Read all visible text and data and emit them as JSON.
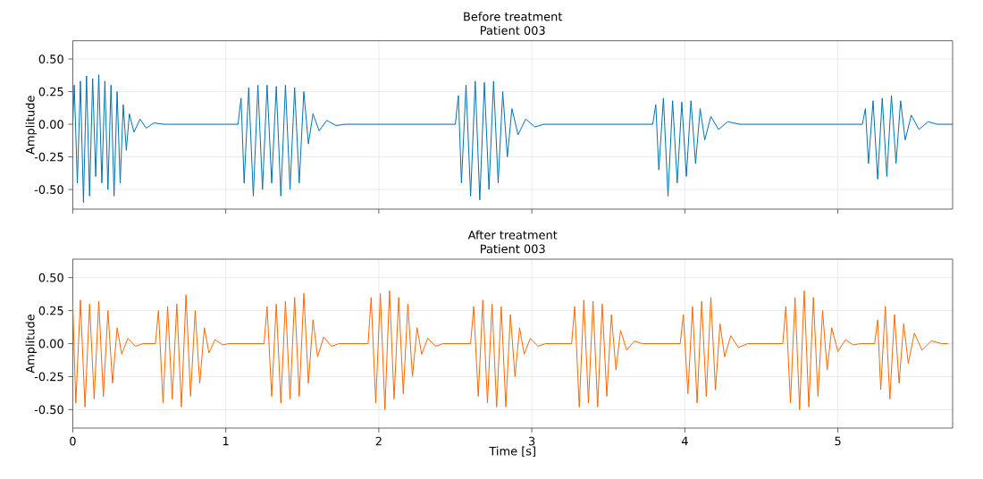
{
  "chart_data": [
    {
      "type": "line",
      "title": "Before treatment",
      "subtitle": "Patient 003",
      "ylabel": "Amplitude",
      "xlim": [
        0,
        5.75
      ],
      "xticks": [
        0,
        1,
        2,
        3,
        4,
        5
      ],
      "ylim": [
        -0.65,
        0.64
      ],
      "yticks": [
        {
          "value": -0.5,
          "label": "-0.50"
        },
        {
          "value": -0.25,
          "label": "-0.25"
        },
        {
          "value": 0,
          "label": "0.00"
        },
        {
          "value": 0.25,
          "label": "0.25"
        },
        {
          "value": 0.5,
          "label": "0.50"
        }
      ],
      "grid": true,
      "tick_labels": "y",
      "series": [
        {
          "color": "#0072b2",
          "x": [
            0,
            0.01,
            0.03,
            0.05,
            0.07,
            0.09,
            0.11,
            0.13,
            0.15,
            0.17,
            0.19,
            0.21,
            0.23,
            0.25,
            0.27,
            0.29,
            0.31,
            0.33,
            0.35,
            0.37,
            0.4,
            0.44,
            0.48,
            0.53,
            0.6,
            1.08,
            1.1,
            1.12,
            1.15,
            1.18,
            1.21,
            1.24,
            1.27,
            1.3,
            1.33,
            1.36,
            1.39,
            1.42,
            1.45,
            1.48,
            1.51,
            1.54,
            1.57,
            1.61,
            1.66,
            1.72,
            1.78,
            2.5,
            2.52,
            2.54,
            2.57,
            2.6,
            2.63,
            2.66,
            2.69,
            2.72,
            2.75,
            2.78,
            2.81,
            2.84,
            2.87,
            2.91,
            2.96,
            3.02,
            3.08,
            3.79,
            3.81,
            3.83,
            3.86,
            3.89,
            3.92,
            3.95,
            3.98,
            4.01,
            4.04,
            4.07,
            4.1,
            4.13,
            4.17,
            4.22,
            4.28,
            4.36,
            5.16,
            5.18,
            5.2,
            5.23,
            5.26,
            5.29,
            5.32,
            5.35,
            5.38,
            5.41,
            5.44,
            5.48,
            5.53,
            5.59,
            5.65,
            5.75
          ],
          "values": [
            0,
            0.3,
            -0.45,
            0.33,
            -0.6,
            0.37,
            -0.55,
            0.35,
            -0.4,
            0.38,
            -0.45,
            0.33,
            -0.5,
            0.3,
            -0.55,
            0.25,
            -0.45,
            0.15,
            -0.2,
            0.08,
            -0.06,
            0.04,
            -0.03,
            0.01,
            0,
            0,
            0.2,
            -0.45,
            0.28,
            -0.55,
            0.3,
            -0.5,
            0.3,
            -0.45,
            0.29,
            -0.55,
            0.3,
            -0.5,
            0.28,
            -0.45,
            0.25,
            -0.15,
            0.08,
            -0.05,
            0.03,
            -0.01,
            0,
            0,
            0.22,
            -0.45,
            0.3,
            -0.55,
            0.33,
            -0.58,
            0.32,
            -0.5,
            0.33,
            -0.45,
            0.25,
            -0.25,
            0.12,
            -0.08,
            0.04,
            -0.02,
            0,
            0,
            0.15,
            -0.35,
            0.2,
            -0.55,
            0.18,
            -0.45,
            0.17,
            -0.4,
            0.18,
            -0.3,
            0.12,
            -0.12,
            0.06,
            -0.04,
            0.02,
            0,
            0,
            0.12,
            -0.3,
            0.18,
            -0.42,
            0.2,
            -0.4,
            0.22,
            -0.3,
            0.18,
            -0.12,
            0.07,
            -0.04,
            0.02,
            0,
            0
          ]
        }
      ]
    },
    {
      "type": "line",
      "title": "After treatment",
      "subtitle": "Patient 003",
      "xlabel": "Time [s]",
      "ylabel": "Amplitude",
      "xlim": [
        0,
        5.75
      ],
      "xticks": [
        0,
        1,
        2,
        3,
        4,
        5
      ],
      "ylim": [
        -0.64,
        0.64
      ],
      "yticks": [
        {
          "value": -0.5,
          "label": "-0.50"
        },
        {
          "value": -0.25,
          "label": "-0.25"
        },
        {
          "value": 0,
          "label": "0.00"
        },
        {
          "value": 0.25,
          "label": "0.25"
        },
        {
          "value": 0.5,
          "label": "0.50"
        }
      ],
      "grid": true,
      "series": [
        {
          "color": "#ff6600",
          "x": [
            0,
            0.02,
            0.05,
            0.08,
            0.11,
            0.14,
            0.17,
            0.2,
            0.23,
            0.26,
            0.29,
            0.32,
            0.36,
            0.41,
            0.46,
            0.54,
            0.56,
            0.59,
            0.62,
            0.65,
            0.68,
            0.71,
            0.74,
            0.77,
            0.8,
            0.83,
            0.86,
            0.89,
            0.93,
            0.98,
            1.02,
            1.25,
            1.27,
            1.3,
            1.33,
            1.36,
            1.39,
            1.42,
            1.45,
            1.48,
            1.51,
            1.54,
            1.57,
            1.6,
            1.64,
            1.69,
            1.74,
            1.93,
            1.95,
            1.98,
            2.01,
            2.04,
            2.07,
            2.1,
            2.13,
            2.16,
            2.19,
            2.22,
            2.25,
            2.28,
            2.32,
            2.37,
            2.42,
            2.6,
            2.62,
            2.65,
            2.68,
            2.71,
            2.74,
            2.77,
            2.8,
            2.83,
            2.86,
            2.89,
            2.92,
            2.95,
            2.99,
            3.04,
            3.09,
            3.26,
            3.28,
            3.31,
            3.34,
            3.37,
            3.4,
            3.43,
            3.46,
            3.49,
            3.52,
            3.55,
            3.58,
            3.62,
            3.67,
            3.72,
            3.97,
            3.99,
            4.02,
            4.05,
            4.08,
            4.11,
            4.14,
            4.17,
            4.2,
            4.23,
            4.26,
            4.3,
            4.35,
            4.41,
            4.64,
            4.66,
            4.69,
            4.72,
            4.75,
            4.78,
            4.81,
            4.84,
            4.87,
            4.9,
            4.93,
            4.96,
            5.0,
            5.05,
            5.1,
            5.15,
            5.24,
            5.26,
            5.28,
            5.31,
            5.34,
            5.37,
            5.4,
            5.43,
            5.46,
            5.5,
            5.55,
            5.61,
            5.68,
            5.72
          ],
          "values": [
            0.3,
            -0.45,
            0.33,
            -0.48,
            0.3,
            -0.42,
            0.32,
            -0.4,
            0.25,
            -0.3,
            0.12,
            -0.08,
            0.04,
            -0.02,
            0,
            0,
            0.25,
            -0.45,
            0.28,
            -0.42,
            0.3,
            -0.48,
            0.37,
            -0.4,
            0.25,
            -0.3,
            0.12,
            -0.07,
            0.03,
            -0.01,
            0,
            0,
            0.28,
            -0.4,
            0.3,
            -0.45,
            0.32,
            -0.42,
            0.35,
            -0.4,
            0.38,
            -0.3,
            0.18,
            -0.1,
            0.05,
            -0.02,
            0,
            0,
            0.35,
            -0.45,
            0.38,
            -0.5,
            0.4,
            -0.42,
            0.35,
            -0.38,
            0.3,
            -0.25,
            0.12,
            -0.08,
            0.04,
            -0.02,
            0,
            0,
            0.28,
            -0.4,
            0.33,
            -0.45,
            0.3,
            -0.48,
            0.28,
            -0.48,
            0.22,
            -0.25,
            0.12,
            -0.08,
            0.04,
            -0.02,
            0,
            0,
            0.28,
            -0.48,
            0.33,
            -0.45,
            0.32,
            -0.48,
            0.3,
            -0.4,
            0.22,
            -0.2,
            0.1,
            -0.05,
            0.02,
            0,
            0,
            0.22,
            -0.38,
            0.28,
            -0.45,
            0.32,
            -0.4,
            0.35,
            -0.35,
            0.15,
            -0.1,
            0.06,
            -0.03,
            0,
            0,
            0.28,
            -0.45,
            0.35,
            -0.5,
            0.4,
            -0.48,
            0.35,
            -0.4,
            0.25,
            -0.2,
            0.12,
            -0.06,
            0.03,
            -0.01,
            0,
            0,
            0.18,
            -0.35,
            0.28,
            -0.42,
            0.22,
            -0.3,
            0.15,
            -0.15,
            0.08,
            -0.05,
            0.02,
            0,
            0
          ]
        }
      ]
    }
  ]
}
